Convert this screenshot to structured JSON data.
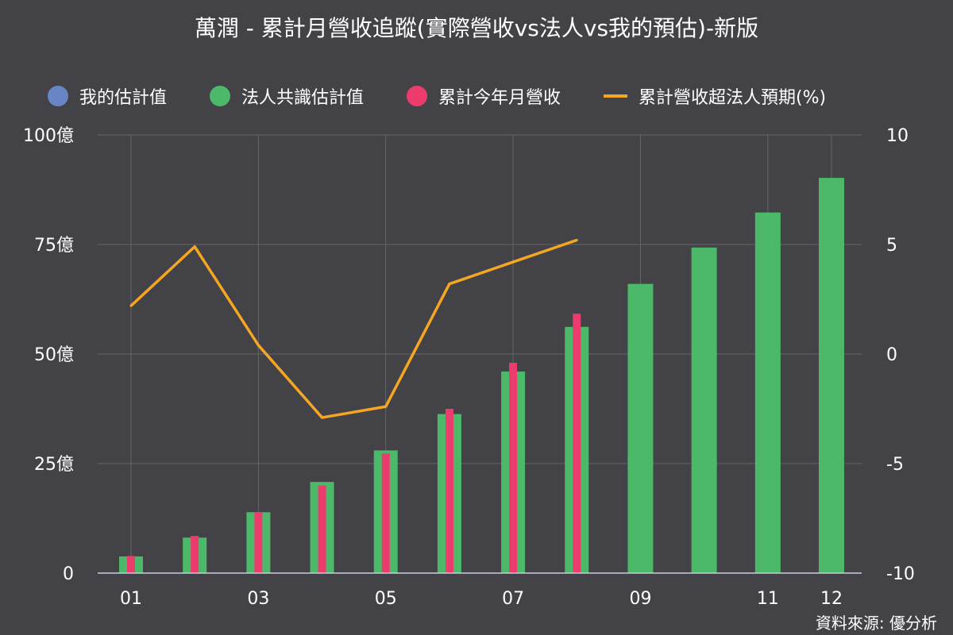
{
  "title": "萬潤 - 累計月營收追蹤(實際營收vs法人vs我的預估)-新版",
  "source": "資料來源: 優分析",
  "legend": [
    {
      "label": "我的估計值",
      "color": "#6a85c6",
      "kind": "dot"
    },
    {
      "label": "法人共識估計值",
      "color": "#4cb96a",
      "kind": "dot"
    },
    {
      "label": "累計今年月營收",
      "color": "#ec3c6e",
      "kind": "dot"
    },
    {
      "label": "累計營收超法人預期(%)",
      "color": "#f5a623",
      "kind": "line"
    }
  ],
  "chart_data": {
    "type": "bar",
    "categories": [
      "01",
      "02",
      "03",
      "04",
      "05",
      "06",
      "07",
      "08",
      "09",
      "10",
      "11",
      "12"
    ],
    "x_tick_labels": [
      "01",
      "",
      "03",
      "",
      "05",
      "",
      "07",
      "",
      "09",
      "",
      "11",
      "12"
    ],
    "series": [
      {
        "name": "法人共識估計值",
        "type": "bar",
        "axis": "left",
        "color": "#4cb96a",
        "values": [
          3.8,
          8.1,
          13.9,
          20.8,
          28.0,
          36.3,
          46.0,
          56.2,
          66.0,
          74.3,
          82.3,
          90.2
        ]
      },
      {
        "name": "累計今年月營收",
        "type": "bar",
        "axis": "left",
        "color": "#ec3c6e",
        "values": [
          3.9,
          8.5,
          13.9,
          20.0,
          27.3,
          37.5,
          48.0,
          59.2,
          null,
          null,
          null,
          null
        ]
      },
      {
        "name": "累計營收超法人預期(%)",
        "type": "line",
        "axis": "right",
        "color": "#f5a623",
        "values": [
          2.2,
          4.9,
          0.4,
          -2.9,
          -2.4,
          3.2,
          4.2,
          5.2,
          null,
          null,
          null,
          null
        ]
      }
    ],
    "y_left": {
      "ylim": [
        0,
        100
      ],
      "ticks": [
        0,
        25,
        50,
        75,
        100
      ],
      "tick_labels": [
        "0",
        "25億",
        "50億",
        "75億",
        "100億"
      ]
    },
    "y_right": {
      "ylim": [
        -10,
        10
      ],
      "ticks": [
        -10,
        -5,
        0,
        5,
        10
      ],
      "tick_labels": [
        "-10",
        "-5",
        "0",
        "5",
        "10"
      ]
    },
    "grid": true,
    "legend_position": "top"
  }
}
